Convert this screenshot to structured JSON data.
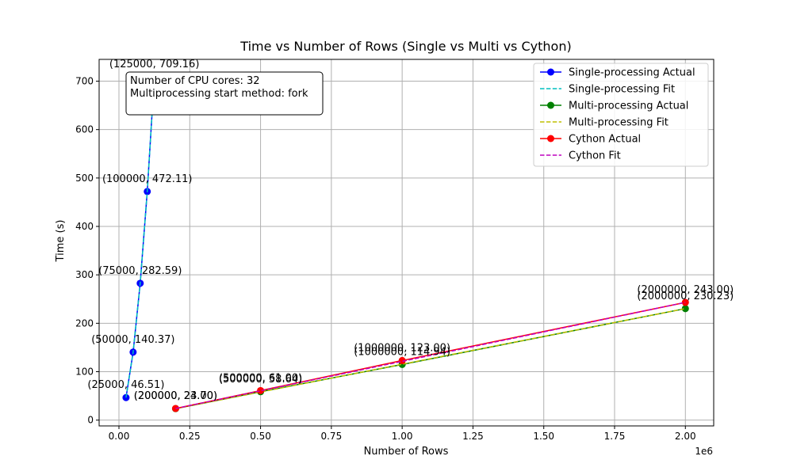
{
  "chart_data": {
    "type": "line",
    "title": "Time vs Number of Rows (Single vs Multi vs Cython)",
    "xlabel": "Number of Rows",
    "ylabel": "Time (s)",
    "x_scale_note": "1e6",
    "xlim": [
      -70000,
      2100000
    ],
    "ylim": [
      -12,
      745
    ],
    "x_ticks": [
      0,
      250000,
      500000,
      750000,
      1000000,
      1250000,
      1500000,
      1750000,
      2000000
    ],
    "x_tick_labels": [
      "0.00",
      "0.25",
      "0.50",
      "0.75",
      "1.00",
      "1.25",
      "1.50",
      "1.75",
      "2.00"
    ],
    "y_ticks": [
      0,
      100,
      200,
      300,
      400,
      500,
      600,
      700
    ],
    "y_tick_labels": [
      "0",
      "100",
      "200",
      "300",
      "400",
      "500",
      "600",
      "700"
    ],
    "grid": true,
    "legend_position": "top-right",
    "info_box": [
      "Number of CPU cores: 32",
      "Multiprocessing start method: fork"
    ],
    "series": [
      {
        "name": "Single-processing Actual",
        "color": "#0000ff",
        "style": "solid-marker",
        "x": [
          25000,
          50000,
          75000,
          100000,
          125000
        ],
        "y": [
          46.51,
          140.37,
          282.59,
          472.11,
          709.16
        ],
        "labels": [
          "(25000, 46.51)",
          "(50000, 140.37)",
          "(75000, 282.59)",
          "(100000, 472.11)",
          "(125000, 709.16)"
        ]
      },
      {
        "name": "Single-processing Fit",
        "color": "#00bfbf",
        "style": "dashed",
        "x": [
          25000,
          50000,
          75000,
          100000,
          125000
        ],
        "y": [
          46.5,
          140.4,
          282.6,
          472.1,
          709.2
        ]
      },
      {
        "name": "Multi-processing Actual",
        "color": "#008000",
        "style": "solid-marker",
        "x": [
          200000,
          500000,
          1000000,
          2000000
        ],
        "y": [
          23.7,
          58.64,
          114.94,
          230.23
        ],
        "labels": [
          "(200000, 23.70)",
          "(500000, 58.64)",
          "(1000000, 114.94)",
          "(2000000, 230.23)"
        ]
      },
      {
        "name": "Multi-processing Fit",
        "color": "#bfbf00",
        "style": "dashed",
        "x": [
          200000,
          2000000
        ],
        "y": [
          23.5,
          230.3
        ]
      },
      {
        "name": "Cython Actual",
        "color": "#ff0000",
        "style": "solid-marker",
        "x": [
          200000,
          500000,
          1000000,
          2000000
        ],
        "y": [
          24.0,
          61.0,
          123.0,
          243.0
        ],
        "labels": [
          "(200000, 24.00)",
          "(500000, 61.00)",
          "(1000000, 123.00)",
          "(2000000, 243.00)"
        ]
      },
      {
        "name": "Cython Fit",
        "color": "#bf00bf",
        "style": "dashed",
        "x": [
          200000,
          2000000
        ],
        "y": [
          24.0,
          243.0
        ]
      }
    ]
  }
}
